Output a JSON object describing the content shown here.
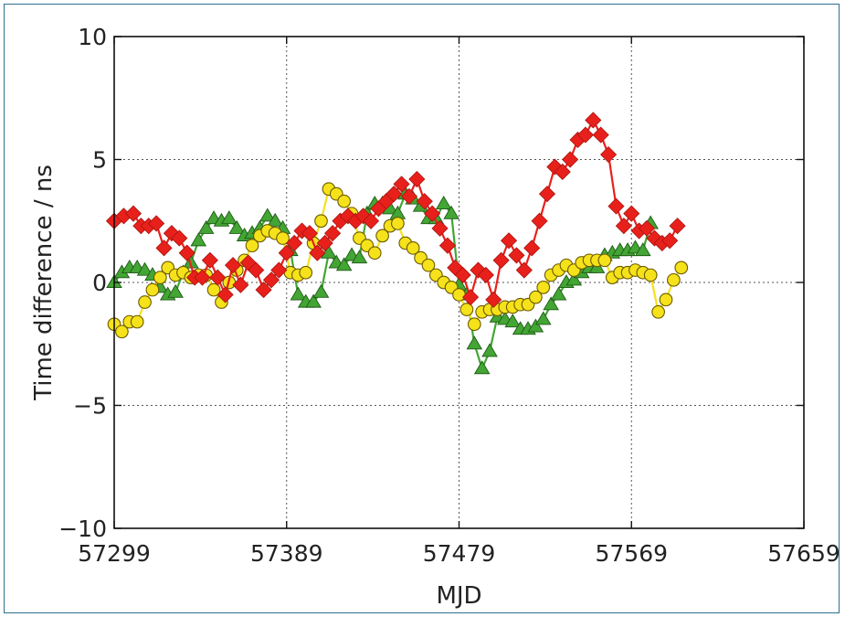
{
  "chart_data": {
    "type": "line",
    "title": "",
    "xlabel": "MJD",
    "ylabel": "Time difference / ns",
    "xlim": [
      57299,
      57659
    ],
    "ylim": [
      -10,
      10
    ],
    "x_ticks": [
      "57299",
      "57389",
      "57479",
      "57569",
      "57659"
    ],
    "y_ticks": [
      "10",
      "5",
      "0",
      "−5",
      "−10"
    ],
    "grid": true,
    "legend": "none",
    "series": [
      {
        "color": "#e8201b",
        "marker": "diamond",
        "points": [
          [
            57299,
            2.5
          ],
          [
            57304,
            2.7
          ],
          [
            57309,
            2.8
          ],
          [
            57313,
            2.3
          ],
          [
            57317,
            2.3
          ],
          [
            57321,
            2.4
          ],
          [
            57325,
            1.4
          ],
          [
            57329,
            2.0
          ],
          [
            57333,
            1.8
          ],
          [
            57337,
            1.2
          ],
          [
            57341,
            0.2
          ],
          [
            57345,
            0.2
          ],
          [
            57349,
            0.9
          ],
          [
            57353,
            0.2
          ],
          [
            57357,
            -0.5
          ],
          [
            57361,
            0.7
          ],
          [
            57365,
            -0.1
          ],
          [
            57369,
            0.8
          ],
          [
            57373,
            0.5
          ],
          [
            57377,
            -0.3
          ],
          [
            57381,
            0.1
          ],
          [
            57385,
            0.5
          ],
          [
            57389,
            1.2
          ],
          [
            57393,
            1.6
          ],
          [
            57397,
            2.1
          ],
          [
            57401,
            2.0
          ],
          [
            57405,
            1.2
          ],
          [
            57409,
            1.6
          ],
          [
            57413,
            2.0
          ],
          [
            57417,
            2.5
          ],
          [
            57421,
            2.7
          ],
          [
            57425,
            2.5
          ],
          [
            57429,
            2.7
          ],
          [
            57433,
            2.5
          ],
          [
            57437,
            3.0
          ],
          [
            57441,
            3.3
          ],
          [
            57445,
            3.6
          ],
          [
            57449,
            4.0
          ],
          [
            57453,
            3.5
          ],
          [
            57457,
            4.2
          ],
          [
            57461,
            3.3
          ],
          [
            57465,
            2.8
          ],
          [
            57469,
            2.2
          ],
          [
            57473,
            1.5
          ],
          [
            57477,
            0.6
          ],
          [
            57481,
            0.3
          ],
          [
            57485,
            -0.6
          ],
          [
            57489,
            0.5
          ],
          [
            57493,
            0.3
          ],
          [
            57497,
            -0.7
          ],
          [
            57501,
            0.9
          ],
          [
            57505,
            1.7
          ],
          [
            57509,
            1.1
          ],
          [
            57513,
            0.5
          ],
          [
            57517,
            1.4
          ],
          [
            57521,
            2.5
          ],
          [
            57525,
            3.6
          ],
          [
            57529,
            4.7
          ],
          [
            57533,
            4.5
          ],
          [
            57537,
            5.0
          ],
          [
            57541,
            5.8
          ],
          [
            57545,
            6.0
          ],
          [
            57549,
            6.6
          ],
          [
            57553,
            6.0
          ],
          [
            57557,
            5.2
          ],
          [
            57561,
            3.1
          ],
          [
            57565,
            2.3
          ],
          [
            57569,
            2.8
          ],
          [
            57573,
            2.1
          ],
          [
            57577,
            2.2
          ],
          [
            57581,
            1.8
          ],
          [
            57585,
            1.6
          ],
          [
            57589,
            1.7
          ],
          [
            57593,
            2.3
          ]
        ]
      },
      {
        "color": "#f5e21a",
        "marker": "circle",
        "points": [
          [
            57299,
            -1.7
          ],
          [
            57303,
            -2.0
          ],
          [
            57307,
            -1.6
          ],
          [
            57311,
            -1.6
          ],
          [
            57315,
            -0.8
          ],
          [
            57319,
            -0.3
          ],
          [
            57323,
            0.2
          ],
          [
            57327,
            0.6
          ],
          [
            57331,
            0.3
          ],
          [
            57335,
            0.4
          ],
          [
            57339,
            0.2
          ],
          [
            57343,
            0.3
          ],
          [
            57347,
            0.3
          ],
          [
            57351,
            -0.3
          ],
          [
            57355,
            -0.8
          ],
          [
            57359,
            0.0
          ],
          [
            57363,
            0.5
          ],
          [
            57367,
            0.9
          ],
          [
            57371,
            1.5
          ],
          [
            57375,
            1.9
          ],
          [
            57379,
            2.1
          ],
          [
            57383,
            2.0
          ],
          [
            57387,
            1.8
          ],
          [
            57391,
            0.4
          ],
          [
            57395,
            0.3
          ],
          [
            57399,
            0.4
          ],
          [
            57403,
            1.6
          ],
          [
            57407,
            2.5
          ],
          [
            57411,
            3.8
          ],
          [
            57415,
            3.6
          ],
          [
            57419,
            3.3
          ],
          [
            57423,
            2.8
          ],
          [
            57427,
            1.8
          ],
          [
            57431,
            1.5
          ],
          [
            57435,
            1.2
          ],
          [
            57439,
            1.9
          ],
          [
            57443,
            2.3
          ],
          [
            57447,
            2.4
          ],
          [
            57451,
            1.6
          ],
          [
            57455,
            1.4
          ],
          [
            57459,
            1.0
          ],
          [
            57463,
            0.7
          ],
          [
            57467,
            0.3
          ],
          [
            57471,
            0.0
          ],
          [
            57475,
            -0.2
          ],
          [
            57479,
            -0.5
          ],
          [
            57483,
            -1.1
          ],
          [
            57487,
            -1.7
          ],
          [
            57491,
            -1.2
          ],
          [
            57495,
            -1.1
          ],
          [
            57499,
            -1.1
          ],
          [
            57503,
            -1.0
          ],
          [
            57507,
            -1.0
          ],
          [
            57511,
            -0.9
          ],
          [
            57515,
            -0.9
          ],
          [
            57519,
            -0.6
          ],
          [
            57523,
            -0.2
          ],
          [
            57527,
            0.3
          ],
          [
            57531,
            0.5
          ],
          [
            57535,
            0.7
          ],
          [
            57539,
            0.5
          ],
          [
            57543,
            0.8
          ],
          [
            57547,
            0.9
          ],
          [
            57551,
            0.9
          ],
          [
            57555,
            0.9
          ],
          [
            57559,
            0.2
          ],
          [
            57563,
            0.4
          ],
          [
            57567,
            0.4
          ],
          [
            57571,
            0.5
          ],
          [
            57575,
            0.4
          ],
          [
            57579,
            0.3
          ],
          [
            57583,
            -1.2
          ],
          [
            57587,
            -0.7
          ],
          [
            57591,
            0.1
          ],
          [
            57595,
            0.6
          ]
        ]
      },
      {
        "color": "#43a533",
        "marker": "triangle",
        "points": [
          [
            57299,
            0.0
          ],
          [
            57303,
            0.4
          ],
          [
            57307,
            0.6
          ],
          [
            57311,
            0.6
          ],
          [
            57315,
            0.5
          ],
          [
            57319,
            0.3
          ],
          [
            57323,
            -0.2
          ],
          [
            57327,
            -0.5
          ],
          [
            57331,
            -0.4
          ],
          [
            57335,
            0.4
          ],
          [
            57339,
            0.8
          ],
          [
            57343,
            1.7
          ],
          [
            57347,
            2.2
          ],
          [
            57351,
            2.6
          ],
          [
            57355,
            2.5
          ],
          [
            57359,
            2.6
          ],
          [
            57363,
            2.2
          ],
          [
            57367,
            1.9
          ],
          [
            57371,
            2.0
          ],
          [
            57375,
            2.2
          ],
          [
            57379,
            2.7
          ],
          [
            57383,
            2.5
          ],
          [
            57387,
            2.2
          ],
          [
            57391,
            1.3
          ],
          [
            57395,
            -0.5
          ],
          [
            57399,
            -0.8
          ],
          [
            57403,
            -0.8
          ],
          [
            57407,
            -0.4
          ],
          [
            57411,
            1.2
          ],
          [
            57415,
            0.8
          ],
          [
            57419,
            0.7
          ],
          [
            57423,
            1.1
          ],
          [
            57427,
            1.0
          ],
          [
            57431,
            2.8
          ],
          [
            57435,
            3.2
          ],
          [
            57439,
            3.2
          ],
          [
            57443,
            3.0
          ],
          [
            57447,
            2.8
          ],
          [
            57451,
            3.6
          ],
          [
            57455,
            3.4
          ],
          [
            57459,
            3.1
          ],
          [
            57463,
            2.6
          ],
          [
            57467,
            2.6
          ],
          [
            57471,
            3.2
          ],
          [
            57475,
            2.8
          ],
          [
            57479,
            -0.1
          ],
          [
            57483,
            -0.5
          ],
          [
            57487,
            -2.5
          ],
          [
            57491,
            -3.5
          ],
          [
            57495,
            -2.8
          ],
          [
            57499,
            -1.4
          ],
          [
            57503,
            -1.5
          ],
          [
            57507,
            -1.6
          ],
          [
            57511,
            -1.9
          ],
          [
            57515,
            -1.9
          ],
          [
            57519,
            -1.8
          ],
          [
            57523,
            -1.5
          ],
          [
            57527,
            -0.9
          ],
          [
            57531,
            -0.5
          ],
          [
            57535,
            0.0
          ],
          [
            57539,
            0.1
          ],
          [
            57543,
            0.4
          ],
          [
            57547,
            0.6
          ],
          [
            57551,
            0.6
          ],
          [
            57555,
            1.1
          ],
          [
            57559,
            1.2
          ],
          [
            57563,
            1.3
          ],
          [
            57567,
            1.3
          ],
          [
            57571,
            1.4
          ],
          [
            57575,
            1.3
          ],
          [
            57579,
            2.4
          ]
        ]
      }
    ]
  }
}
